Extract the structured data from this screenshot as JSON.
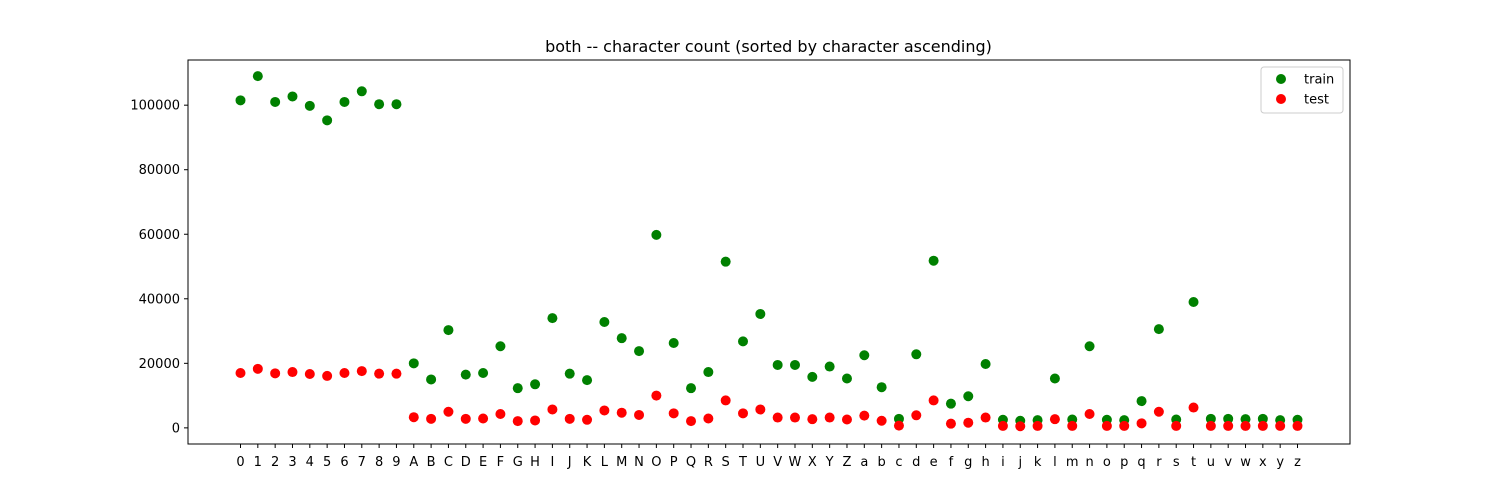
{
  "chart_data": {
    "type": "scatter",
    "title": "both -- character count (sorted by character ascending)",
    "xlabel": "",
    "ylabel": "",
    "ylim": [
      -5000,
      114000
    ],
    "yticks": [
      0,
      20000,
      40000,
      60000,
      80000,
      100000
    ],
    "ytick_labels": [
      "0",
      "20000",
      "40000",
      "60000",
      "80000",
      "100000"
    ],
    "grid": false,
    "legend_position": "top-right",
    "categories": [
      "0",
      "1",
      "2",
      "3",
      "4",
      "5",
      "6",
      "7",
      "8",
      "9",
      "A",
      "B",
      "C",
      "D",
      "E",
      "F",
      "G",
      "H",
      "I",
      "J",
      "K",
      "L",
      "M",
      "N",
      "O",
      "P",
      "Q",
      "R",
      "S",
      "T",
      "U",
      "V",
      "W",
      "X",
      "Y",
      "Z",
      "a",
      "b",
      "c",
      "d",
      "e",
      "f",
      "g",
      "h",
      "i",
      "j",
      "k",
      "l",
      "m",
      "n",
      "o",
      "p",
      "q",
      "r",
      "s",
      "t",
      "u",
      "v",
      "w",
      "x",
      "y",
      "z"
    ],
    "series": [
      {
        "name": "train",
        "color": "#008000",
        "values": [
          101500,
          109000,
          101000,
          102700,
          99800,
          95300,
          101000,
          104300,
          100300,
          100300,
          20000,
          15000,
          30300,
          16500,
          17000,
          25300,
          12300,
          13500,
          34000,
          16800,
          14800,
          32800,
          27800,
          23800,
          59800,
          26300,
          12300,
          17300,
          51500,
          26800,
          35300,
          19500,
          19500,
          15800,
          19000,
          15300,
          22500,
          12600,
          2800,
          22800,
          51800,
          7500,
          9800,
          19800,
          2500,
          2200,
          2400,
          15300,
          2600,
          25300,
          2500,
          2400,
          8300,
          30600,
          2600,
          39000,
          2800,
          2800,
          2700,
          2800,
          2400,
          2500
        ]
      },
      {
        "name": "test",
        "color": "#ff0000",
        "values": [
          17000,
          18300,
          16900,
          17300,
          16700,
          16100,
          17000,
          17600,
          16800,
          16800,
          3300,
          2800,
          5000,
          2800,
          2900,
          4300,
          2100,
          2300,
          5700,
          2800,
          2500,
          5400,
          4700,
          4000,
          10000,
          4500,
          2100,
          2900,
          8500,
          4500,
          5700,
          3200,
          3200,
          2700,
          3200,
          2600,
          3800,
          2200,
          700,
          3900,
          8500,
          1300,
          1600,
          3200,
          600,
          500,
          600,
          2700,
          600,
          4300,
          600,
          600,
          1400,
          5000,
          600,
          6300,
          600,
          600,
          600,
          600,
          600,
          600
        ]
      }
    ]
  }
}
